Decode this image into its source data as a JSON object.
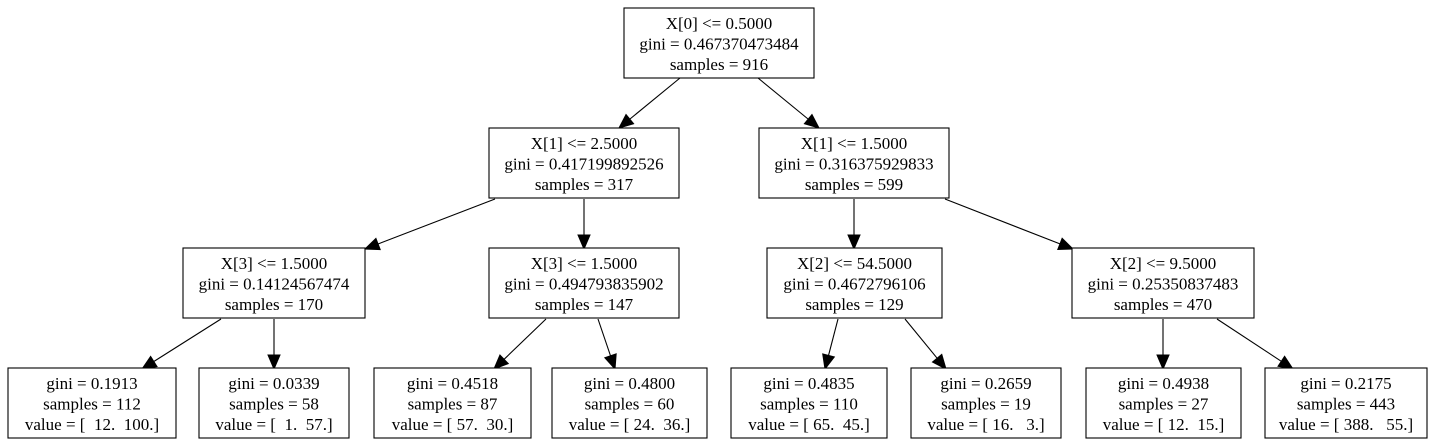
{
  "tree": {
    "nodes": [
      {
        "id": "n0",
        "lines": [
          "X[0] <= 0.5000",
          "gini = 0.467370473484",
          "samples = 916"
        ]
      },
      {
        "id": "n1",
        "lines": [
          "X[1] <= 2.5000",
          "gini = 0.417199892526",
          "samples = 317"
        ]
      },
      {
        "id": "n2",
        "lines": [
          "X[1] <= 1.5000",
          "gini = 0.316375929833",
          "samples = 599"
        ]
      },
      {
        "id": "n3",
        "lines": [
          "X[3] <= 1.5000",
          "gini = 0.14124567474",
          "samples = 170"
        ]
      },
      {
        "id": "n4",
        "lines": [
          "X[3] <= 1.5000",
          "gini = 0.494793835902",
          "samples = 147"
        ]
      },
      {
        "id": "n5",
        "lines": [
          "X[2] <= 54.5000",
          "gini = 0.4672796106",
          "samples = 129"
        ]
      },
      {
        "id": "n6",
        "lines": [
          "X[2] <= 9.5000",
          "gini = 0.25350837483",
          "samples = 470"
        ]
      },
      {
        "id": "n7",
        "lines": [
          "gini = 0.1913",
          "samples = 112",
          "value = [  12.  100.]"
        ]
      },
      {
        "id": "n8",
        "lines": [
          "gini = 0.0339",
          "samples = 58",
          "value = [  1.  57.]"
        ]
      },
      {
        "id": "n9",
        "lines": [
          "gini = 0.4518",
          "samples = 87",
          "value = [ 57.  30.]"
        ]
      },
      {
        "id": "n10",
        "lines": [
          "gini = 0.4800",
          "samples = 60",
          "value = [ 24.  36.]"
        ]
      },
      {
        "id": "n11",
        "lines": [
          "gini = 0.4835",
          "samples = 110",
          "value = [ 65.  45.]"
        ]
      },
      {
        "id": "n12",
        "lines": [
          "gini = 0.2659",
          "samples = 19",
          "value = [ 16.   3.]"
        ]
      },
      {
        "id": "n13",
        "lines": [
          "gini = 0.4938",
          "samples = 27",
          "value = [ 12.  15.]"
        ]
      },
      {
        "id": "n14",
        "lines": [
          "gini = 0.2175",
          "samples = 443",
          "value = [ 388.   55.]"
        ]
      }
    ],
    "edges": [
      [
        "n0",
        "n1"
      ],
      [
        "n0",
        "n2"
      ],
      [
        "n1",
        "n3"
      ],
      [
        "n1",
        "n4"
      ],
      [
        "n2",
        "n5"
      ],
      [
        "n2",
        "n6"
      ],
      [
        "n3",
        "n7"
      ],
      [
        "n3",
        "n8"
      ],
      [
        "n4",
        "n9"
      ],
      [
        "n4",
        "n10"
      ],
      [
        "n5",
        "n11"
      ],
      [
        "n5",
        "n12"
      ],
      [
        "n6",
        "n13"
      ],
      [
        "n6",
        "n14"
      ]
    ]
  }
}
